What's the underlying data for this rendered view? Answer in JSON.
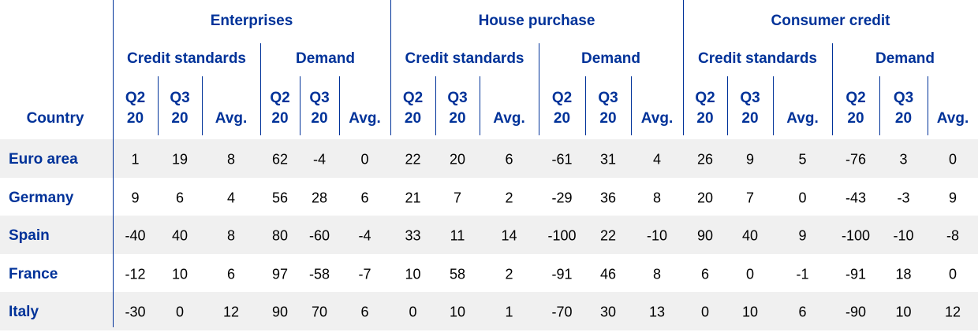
{
  "table": {
    "corner": "Country",
    "groups": [
      {
        "title": "Enterprises",
        "subgroups": [
          {
            "title": "Credit standards",
            "columns": [
              [
                "Q2",
                "20"
              ],
              [
                "Q3",
                "20"
              ],
              [
                "Avg."
              ]
            ]
          },
          {
            "title": "Demand",
            "columns": [
              [
                "Q2",
                "20"
              ],
              [
                "Q3",
                "20"
              ],
              [
                "Avg."
              ]
            ]
          }
        ]
      },
      {
        "title": "House purchase",
        "subgroups": [
          {
            "title": "Credit standards",
            "columns": [
              [
                "Q2",
                "20"
              ],
              [
                "Q3",
                "20"
              ],
              [
                "Avg."
              ]
            ]
          },
          {
            "title": "Demand",
            "columns": [
              [
                "Q2",
                "20"
              ],
              [
                "Q3",
                "20"
              ],
              [
                "Avg."
              ]
            ]
          }
        ]
      },
      {
        "title": "Consumer credit",
        "subgroups": [
          {
            "title": "Credit standards",
            "columns": [
              [
                "Q2",
                "20"
              ],
              [
                "Q3",
                "20"
              ],
              [
                "Avg."
              ]
            ]
          },
          {
            "title": "Demand",
            "columns": [
              [
                "Q2",
                "20"
              ],
              [
                "Q3",
                "20"
              ],
              [
                "Avg."
              ]
            ]
          }
        ]
      }
    ],
    "rows": [
      {
        "country": "Euro area",
        "values": [
          1,
          19,
          8,
          62,
          -4,
          0,
          22,
          20,
          6,
          -61,
          31,
          4,
          26,
          9,
          5,
          -76,
          3,
          0
        ]
      },
      {
        "country": "Germany",
        "values": [
          9,
          6,
          4,
          56,
          28,
          6,
          21,
          7,
          2,
          -29,
          36,
          8,
          20,
          7,
          0,
          -43,
          -3,
          9
        ]
      },
      {
        "country": "Spain",
        "values": [
          -40,
          40,
          8,
          80,
          -60,
          -4,
          33,
          11,
          14,
          -100,
          22,
          -10,
          90,
          40,
          9,
          -100,
          -10,
          -8
        ]
      },
      {
        "country": "France",
        "values": [
          -12,
          10,
          6,
          97,
          -58,
          -7,
          10,
          58,
          2,
          -91,
          46,
          8,
          6,
          0,
          -1,
          -91,
          18,
          0
        ]
      },
      {
        "country": "Italy",
        "values": [
          -30,
          0,
          12,
          90,
          70,
          6,
          0,
          10,
          1,
          -70,
          30,
          13,
          0,
          10,
          6,
          -90,
          10,
          12
        ]
      }
    ]
  }
}
